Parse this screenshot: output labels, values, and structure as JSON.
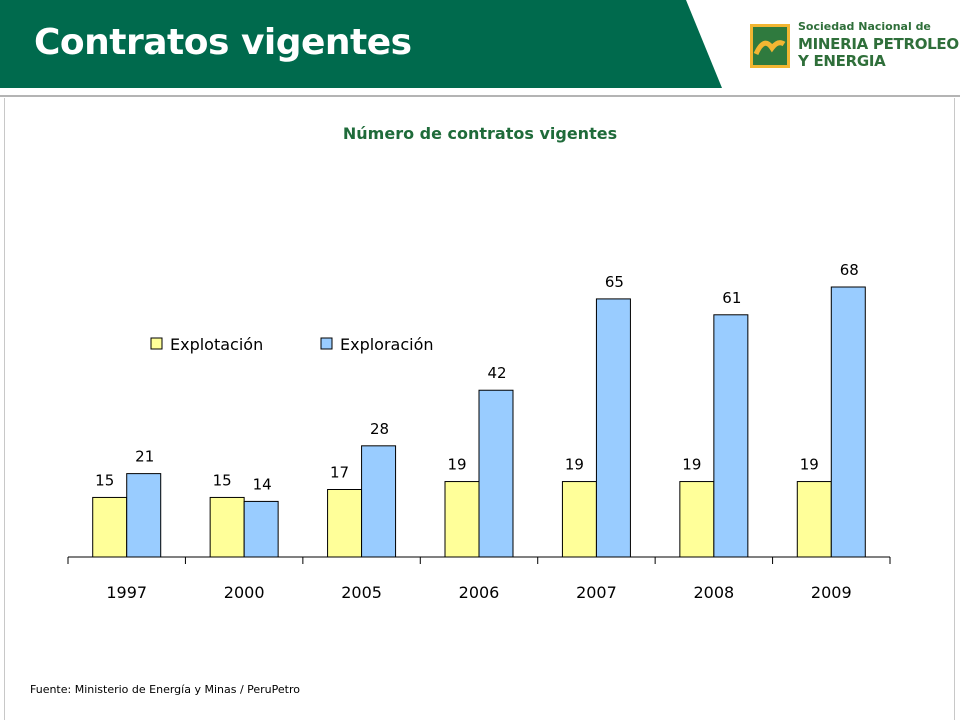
{
  "header": {
    "title": "Contratos vigentes",
    "band_color": "#006a4d",
    "logo": {
      "line1": "Sociedad Nacional de",
      "line2": "MINERIA PETROLEO",
      "line3": "Y ENERGIA"
    }
  },
  "chart_data": {
    "type": "bar",
    "title": "Número de contratos vigentes",
    "categories": [
      "1997",
      "2000",
      "2005",
      "2006",
      "2007",
      "2008",
      "2009"
    ],
    "series": [
      {
        "name": "Explotación",
        "values": [
          15,
          15,
          17,
          19,
          19,
          19,
          19
        ],
        "color": "#ffff99"
      },
      {
        "name": "Exploración",
        "values": [
          21,
          14,
          28,
          42,
          65,
          61,
          68
        ],
        "color": "#99ccff"
      }
    ],
    "xlabel": "",
    "ylabel": "",
    "ylim": [
      0,
      70
    ],
    "grid": false,
    "legend": "top-left",
    "data_labels": true
  },
  "footer": {
    "source": "Fuente: Ministerio de Energía y Minas / PeruPetro"
  }
}
